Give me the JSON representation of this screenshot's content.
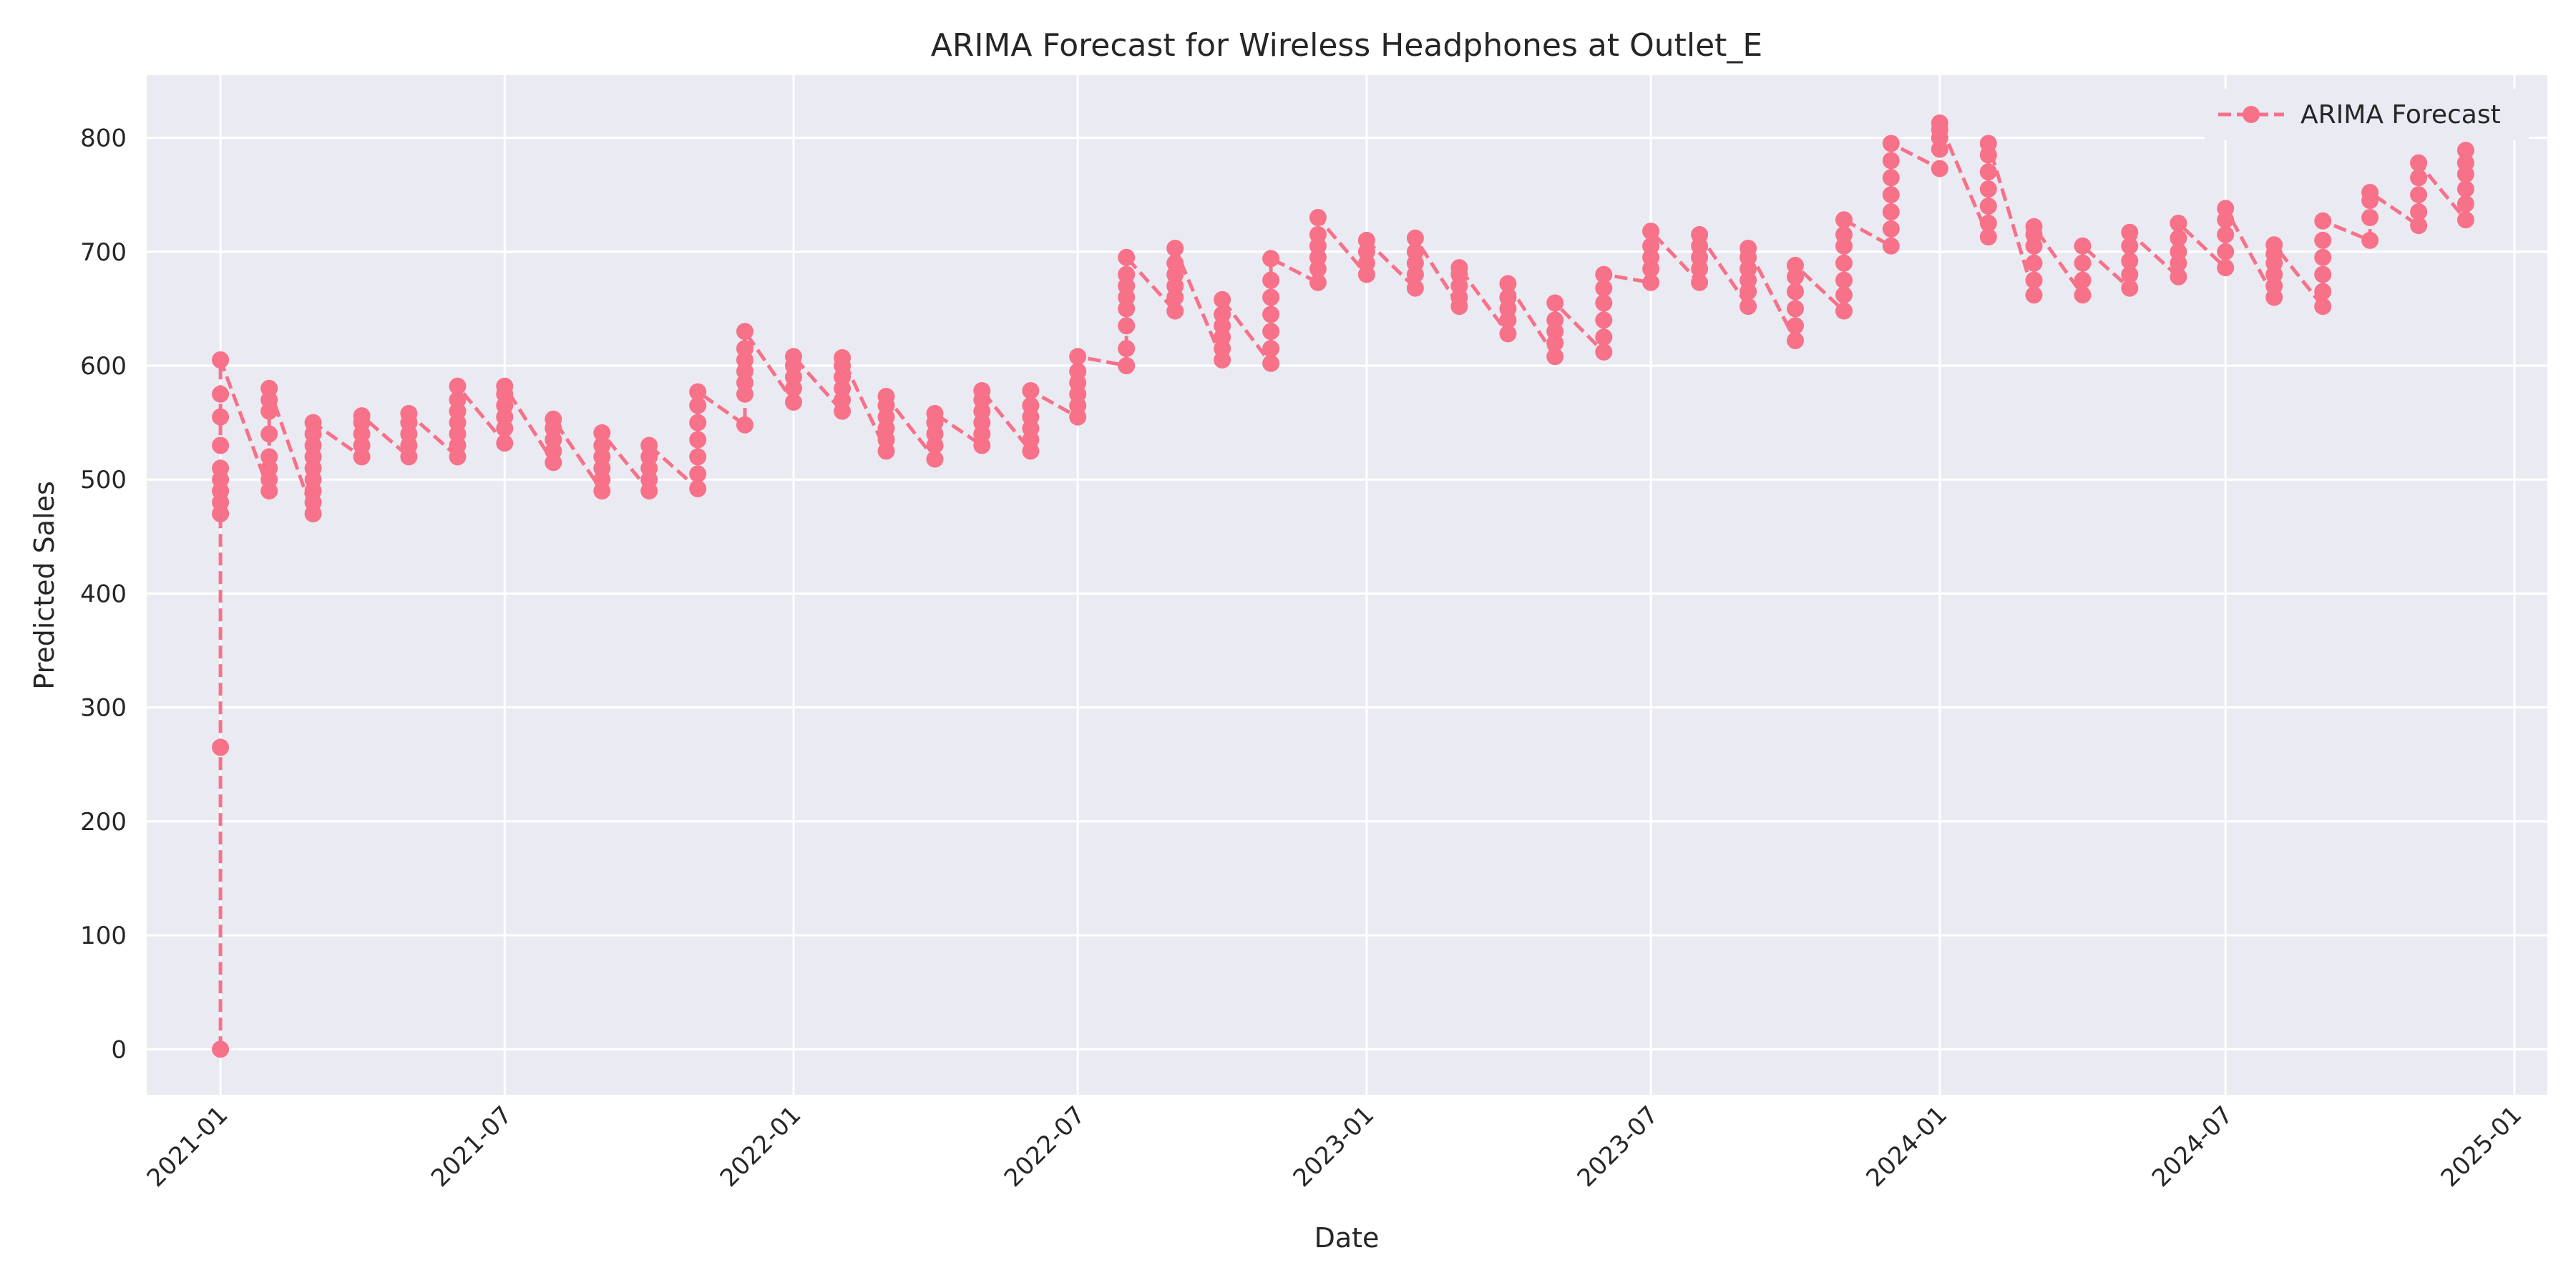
{
  "chart_data": {
    "type": "line",
    "title": "ARIMA Forecast for Wireless Headphones at Outlet_E",
    "xlabel": "Date",
    "ylabel": "Predicted Sales",
    "x_axis_type": "date",
    "xlim": [
      "2020-11-15",
      "2025-01-22"
    ],
    "ylim": [
      -40,
      855
    ],
    "x_ticks": [
      "2021-01",
      "2021-07",
      "2022-01",
      "2022-07",
      "2023-01",
      "2023-07",
      "2024-01",
      "2024-07",
      "2025-01"
    ],
    "y_ticks": [
      0,
      100,
      200,
      300,
      400,
      500,
      600,
      700,
      800
    ],
    "grid": true,
    "legend_position": "top-right",
    "series": [
      {
        "name": "ARIMA Forecast",
        "color": "#f77189",
        "line_style": "dashed",
        "marker": "circle",
        "x": [
          "2021-01",
          "2021-02",
          "2021-03",
          "2021-04",
          "2021-05",
          "2021-06",
          "2021-07",
          "2021-08",
          "2021-09",
          "2021-10",
          "2021-11",
          "2021-12",
          "2022-01",
          "2022-02",
          "2022-03",
          "2022-04",
          "2022-05",
          "2022-06",
          "2022-07",
          "2022-08",
          "2022-09",
          "2022-10",
          "2022-11",
          "2022-12",
          "2023-01",
          "2023-02",
          "2023-03",
          "2023-04",
          "2023-05",
          "2023-06",
          "2023-07",
          "2023-08",
          "2023-09",
          "2023-10",
          "2023-11",
          "2023-12",
          "2024-01",
          "2024-02",
          "2024-03",
          "2024-04",
          "2024-05",
          "2024-06",
          "2024-07",
          "2024-08",
          "2024-09",
          "2024-10",
          "2024-11",
          "2024-12"
        ],
        "groups": [
          [
            0,
            265,
            470,
            480,
            490,
            500,
            510,
            530,
            555,
            575,
            605
          ],
          [
            490,
            500,
            510,
            520,
            540,
            560,
            570,
            580
          ],
          [
            470,
            480,
            490,
            500,
            510,
            520,
            530,
            540,
            550
          ],
          [
            520,
            530,
            540,
            550,
            556
          ],
          [
            520,
            530,
            540,
            550,
            558
          ],
          [
            520,
            530,
            540,
            550,
            560,
            570,
            582
          ],
          [
            532,
            545,
            555,
            565,
            575,
            582
          ],
          [
            515,
            525,
            535,
            545,
            553
          ],
          [
            490,
            500,
            510,
            520,
            530,
            541
          ],
          [
            490,
            500,
            510,
            520,
            530
          ],
          [
            492,
            505,
            520,
            535,
            550,
            565,
            577
          ],
          [
            548,
            575,
            585,
            595,
            605,
            615,
            630
          ],
          [
            568,
            580,
            590,
            600,
            608
          ],
          [
            560,
            570,
            580,
            590,
            600,
            607
          ],
          [
            525,
            535,
            545,
            555,
            565,
            573
          ],
          [
            518,
            530,
            540,
            550,
            558
          ],
          [
            530,
            540,
            550,
            560,
            570,
            578
          ],
          [
            525,
            535,
            545,
            555,
            565,
            578
          ],
          [
            555,
            565,
            575,
            585,
            595,
            608
          ],
          [
            600,
            615,
            635,
            650,
            660,
            670,
            680,
            695
          ],
          [
            648,
            660,
            670,
            680,
            690,
            703
          ],
          [
            605,
            615,
            625,
            635,
            645,
            658
          ],
          [
            602,
            615,
            630,
            645,
            660,
            675,
            694
          ],
          [
            673,
            685,
            695,
            705,
            715,
            730
          ],
          [
            680,
            690,
            700,
            710
          ],
          [
            668,
            680,
            690,
            700,
            712
          ],
          [
            652,
            660,
            670,
            680,
            686
          ],
          [
            628,
            640,
            650,
            660,
            672
          ],
          [
            608,
            620,
            630,
            640,
            655
          ],
          [
            612,
            625,
            640,
            655,
            668,
            680
          ],
          [
            673,
            685,
            695,
            705,
            718
          ],
          [
            673,
            685,
            695,
            705,
            715
          ],
          [
            652,
            665,
            675,
            685,
            695,
            703
          ],
          [
            622,
            635,
            650,
            665,
            678,
            688
          ],
          [
            648,
            662,
            675,
            690,
            705,
            715,
            728
          ],
          [
            705,
            720,
            735,
            750,
            765,
            780,
            795
          ],
          [
            773,
            790,
            800,
            807,
            813
          ],
          [
            713,
            725,
            740,
            755,
            770,
            785,
            795
          ],
          [
            662,
            675,
            690,
            705,
            715,
            722
          ],
          [
            662,
            675,
            690,
            705
          ],
          [
            668,
            680,
            692,
            705,
            717
          ],
          [
            678,
            690,
            700,
            712,
            725
          ],
          [
            686,
            700,
            715,
            728,
            738
          ],
          [
            660,
            670,
            680,
            690,
            698,
            706
          ],
          [
            652,
            665,
            680,
            695,
            710,
            727
          ],
          [
            710,
            730,
            745,
            752
          ],
          [
            723,
            735,
            750,
            765,
            778
          ],
          [
            728,
            742,
            755,
            768,
            778,
            789
          ]
        ]
      }
    ]
  }
}
